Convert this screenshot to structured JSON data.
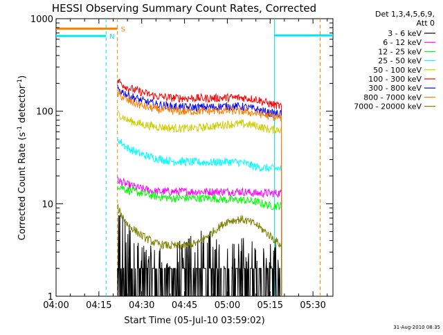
{
  "chart_data": {
    "type": "line",
    "title": "HESSI Observing Summary Count Rates, Corrected",
    "xlabel": "Start Time (05-Jul-10 03:59:02)",
    "ylabel_main": "Corrected Count Rate (s",
    "ylabel_sup1": "-1",
    "ylabel_mid": " detector",
    "ylabel_sup2": "-1",
    "ylabel_end": ")",
    "footer": "31-Aug-2010 08:35",
    "y_scale": "log",
    "ylim": [
      1,
      1000
    ],
    "xlim_minutes": [
      0,
      97
    ],
    "x_ticks": [
      {
        "label": "04:00",
        "minutes": 0
      },
      {
        "label": "04:15",
        "minutes": 15
      },
      {
        "label": "04:30",
        "minutes": 30
      },
      {
        "label": "04:45",
        "minutes": 45
      },
      {
        "label": "05:00",
        "minutes": 60
      },
      {
        "label": "05:15",
        "minutes": 75
      },
      {
        "label": "05:30",
        "minutes": 90
      }
    ],
    "y_ticks": [
      {
        "label": "1",
        "value": 1
      },
      {
        "label": "10",
        "value": 10
      },
      {
        "label": "100",
        "value": 100
      },
      {
        "label": "1000",
        "value": 1000
      }
    ],
    "legend_header": [
      "Det 1,3,4,5,6,9,",
      "Att 0"
    ],
    "legend_position": "right",
    "markers": [
      {
        "label": "S",
        "minutes": 21.5,
        "color": "#ff7f00",
        "style": "dashed"
      },
      {
        "label": "N",
        "minutes": 17.5,
        "color": "#00e5e5",
        "style": "dashed"
      },
      {
        "label": "",
        "minutes": 76.5,
        "color": "#00e5e5",
        "style": "solid"
      },
      {
        "label": "",
        "minutes": 92.5,
        "color": "#ff7f00",
        "style": "dashed"
      }
    ],
    "intervals": [
      {
        "name": "S",
        "color": "#ff7f00",
        "from_minutes": 0,
        "to_minutes": 21.5,
        "value": 780
      },
      {
        "name": "N",
        "color": "#00e5e5",
        "from_minutes": 0,
        "to_minutes": 17.5,
        "value": 650
      },
      {
        "name": "N",
        "color": "#00e5e5",
        "from_minutes": 76.5,
        "to_minutes": 97,
        "value": 660
      }
    ],
    "series": [
      {
        "name": "3 - 6 keV",
        "color": "#000000",
        "x_minutes": [
          21.5,
          25,
          30,
          35,
          40,
          45,
          50,
          55,
          60,
          65,
          70,
          75,
          79
        ],
        "values": [
          3.5,
          2.5,
          1.6,
          1.4,
          1.3,
          1.6,
          2.2,
          1.8,
          1.5,
          1.6,
          1.7,
          1.5,
          1.4
        ],
        "noisy": true
      },
      {
        "name": "6 - 12 keV",
        "color": "#ff00ff",
        "x_minutes": [
          21.5,
          25,
          30,
          35,
          40,
          45,
          50,
          55,
          60,
          65,
          70,
          75,
          79
        ],
        "values": [
          18,
          16,
          14.5,
          13.5,
          13.5,
          13.5,
          13.5,
          13.5,
          13.5,
          13.5,
          13,
          13,
          13
        ]
      },
      {
        "name": "12 - 25 keV",
        "color": "#00ff00",
        "x_minutes": [
          21.5,
          25,
          30,
          35,
          40,
          45,
          50,
          55,
          60,
          65,
          70,
          75,
          79
        ],
        "values": [
          16,
          14,
          13,
          12,
          11.5,
          11.5,
          11.5,
          11.5,
          11,
          11,
          10.5,
          9.5,
          9.5
        ]
      },
      {
        "name": "25 - 50 keV",
        "color": "#00ffff",
        "x_minutes": [
          21.5,
          25,
          30,
          35,
          40,
          45,
          50,
          55,
          60,
          65,
          70,
          75,
          79
        ],
        "values": [
          50,
          40,
          34,
          31,
          29,
          28.5,
          28,
          28,
          28.5,
          28,
          25,
          24,
          24
        ]
      },
      {
        "name": "50 - 100 keV",
        "color": "#cccc00",
        "x_minutes": [
          21.5,
          25,
          30,
          35,
          40,
          45,
          50,
          55,
          60,
          65,
          70,
          75,
          79
        ],
        "values": [
          95,
          80,
          72,
          68,
          66,
          65,
          66,
          69,
          72,
          73,
          70,
          63,
          64
        ]
      },
      {
        "name": "100 - 300 keV",
        "color": "#ff0000",
        "x_minutes": [
          21.5,
          25,
          30,
          35,
          40,
          45,
          50,
          55,
          60,
          65,
          70,
          75,
          79
        ],
        "values": [
          215,
          180,
          160,
          145,
          140,
          138,
          138,
          138,
          140,
          140,
          135,
          120,
          112
        ]
      },
      {
        "name": "300 - 800 keV",
        "color": "#0000ff",
        "x_minutes": [
          21.5,
          25,
          30,
          35,
          40,
          45,
          50,
          55,
          60,
          65,
          70,
          75,
          79
        ],
        "values": [
          175,
          150,
          130,
          118,
          113,
          110,
          110,
          111,
          113,
          112,
          105,
          95,
          93
        ]
      },
      {
        "name": "800 - 7000 keV",
        "color": "#ff7f00",
        "x_minutes": [
          21.5,
          25,
          30,
          35,
          40,
          45,
          50,
          55,
          60,
          65,
          70,
          75,
          79
        ],
        "values": [
          155,
          130,
          115,
          105,
          101,
          99,
          100,
          101,
          101,
          100,
          95,
          88,
          85
        ]
      },
      {
        "name": "7000 - 20000 keV",
        "color": "#808000",
        "x_minutes": [
          21.5,
          25,
          30,
          35,
          40,
          45,
          50,
          55,
          60,
          65,
          70,
          75,
          79
        ],
        "values": [
          9,
          6,
          4.5,
          3.7,
          3.5,
          3.5,
          3.8,
          5,
          6.5,
          6.8,
          6,
          4.5,
          3.5
        ]
      }
    ]
  }
}
